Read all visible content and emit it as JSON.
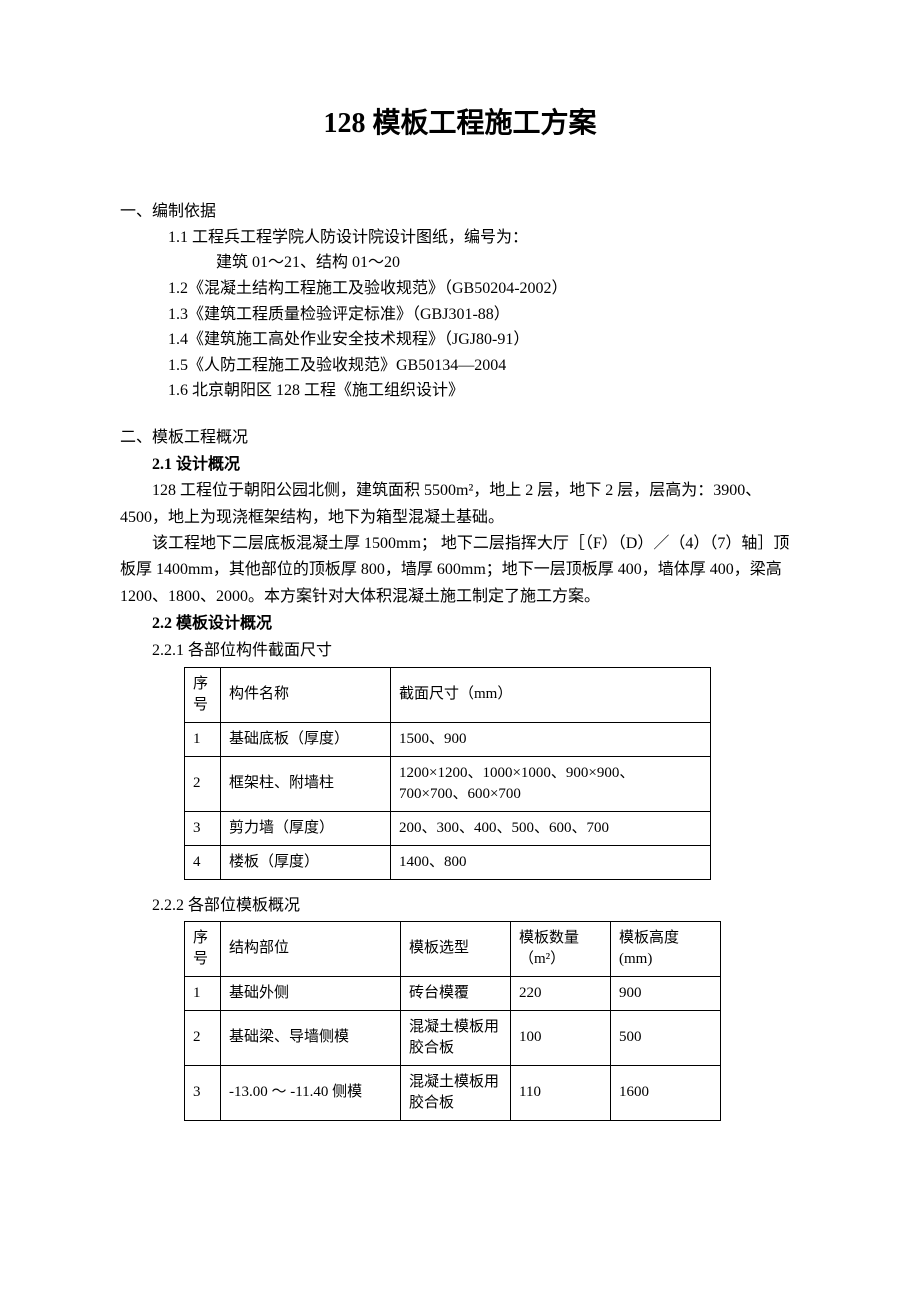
{
  "title": "128 模板工程施工方案",
  "section1": {
    "heading": "一、编制依据",
    "items": [
      "1.1 工程兵工程学院人防设计院设计图纸，编号为：",
      "建筑 01～21、结构 01～20",
      "1.2《混凝土结构工程施工及验收规范》（GB50204-2002）",
      "1.3《建筑工程质量检验评定标准》（GBJ301-88）",
      "1.4《建筑施工高处作业安全技术规程》（JGJ80-91）",
      "1.5《人防工程施工及验收规范》GB50134—2004",
      "1.6 北京朝阳区 128 工程《施工组织设计》"
    ]
  },
  "section2": {
    "heading": "二、模板工程概况",
    "sub21": {
      "heading": "2.1 设计概况",
      "para1": "128 工程位于朝阳公园北侧，建筑面积 5500m²，地上 2 层，地下 2 层，层高为：3900、4500，地上为现浇框架结构，地下为箱型混凝土基础。",
      "para2": "该工程地下二层底板混凝土厚 1500mm； 地下二层指挥大厅［（F）（D）／（4）（7）轴］顶板厚 1400mm，其他部位的顶板厚 800，墙厚 600mm；地下一层顶板厚 400，墙体厚 400，梁高 1200、1800、2000。本方案针对大体积混凝土施工制定了施工方案。"
    },
    "sub22": {
      "heading": "2.2 模板设计概况",
      "sub221": {
        "heading": "2.2.1 各部位构件截面尺寸",
        "columns": [
          "序号",
          "构件名称",
          "截面尺寸（mm）"
        ],
        "rows": [
          [
            "1",
            "基础底板（厚度）",
            "1500、900"
          ],
          [
            "2",
            "框架柱、附墙柱",
            "1200×1200、1000×1000、900×900、700×700、600×700"
          ],
          [
            "3",
            "剪力墙（厚度）",
            "200、300、400、500、600、700"
          ],
          [
            "4",
            "楼板（厚度）",
            "1400、800"
          ]
        ]
      },
      "sub222": {
        "heading": "2.2.2 各部位模板概况",
        "columns": [
          "序号",
          "结构部位",
          "模板选型",
          "模板数量（m²）",
          "模板高度(mm)"
        ],
        "rows": [
          [
            "1",
            "基础外侧",
            "砖台模覆",
            "220",
            "900"
          ],
          [
            "2",
            "基础梁、导墙侧模",
            "混凝土模板用胶合板",
            "100",
            "500"
          ],
          [
            "3",
            "-13.00 ～ -11.40 侧模",
            "混凝土模板用胶合板",
            "110",
            "1600"
          ]
        ]
      }
    }
  }
}
